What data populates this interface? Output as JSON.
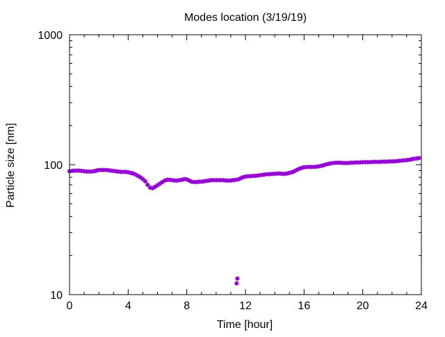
{
  "chart_data": {
    "type": "scatter",
    "title": "Modes location (3/19/19)",
    "xlabel": "Time [hour]",
    "ylabel": "Particle size [nm]",
    "xlim": [
      0,
      24
    ],
    "ylim": [
      10,
      1000
    ],
    "yscale": "log",
    "grid": false,
    "legend": "none",
    "marker_color": "#9400D3",
    "x_ticks": [
      0,
      4,
      8,
      12,
      16,
      20,
      24
    ],
    "x_tick_labels": [
      "0",
      "4",
      "8",
      "12",
      "16",
      "20",
      "24"
    ],
    "y_ticks": [
      10,
      100,
      1000
    ],
    "y_tick_labels": [
      "10",
      "100",
      "1000"
    ],
    "series": [
      {
        "points": [
          [
            0.0,
            89.0
          ],
          [
            0.17,
            89.5
          ],
          [
            0.33,
            90.0
          ],
          [
            0.5,
            90.0
          ],
          [
            0.67,
            90.0
          ],
          [
            0.83,
            89.5
          ],
          [
            1.0,
            89.0
          ],
          [
            1.17,
            88.5
          ],
          [
            1.33,
            88.5
          ],
          [
            1.5,
            88.5
          ],
          [
            1.67,
            89.0
          ],
          [
            1.83,
            90.0
          ],
          [
            2.0,
            91.0
          ],
          [
            2.17,
            91.0
          ],
          [
            2.33,
            91.0
          ],
          [
            2.5,
            91.0
          ],
          [
            2.67,
            90.5
          ],
          [
            2.83,
            90.0
          ],
          [
            3.0,
            89.5
          ],
          [
            3.17,
            89.0
          ],
          [
            3.33,
            88.5
          ],
          [
            3.5,
            88.0
          ],
          [
            3.67,
            88.0
          ],
          [
            3.83,
            88.0
          ],
          [
            4.0,
            87.5
          ],
          [
            4.17,
            86.5
          ],
          [
            4.33,
            85.5
          ],
          [
            4.5,
            84.0
          ],
          [
            4.67,
            82.0
          ],
          [
            4.83,
            80.0
          ],
          [
            5.0,
            77.5
          ],
          [
            5.17,
            74.5
          ],
          [
            5.33,
            70.0
          ],
          [
            5.5,
            66.5
          ],
          [
            5.67,
            66.0
          ],
          [
            5.83,
            67.5
          ],
          [
            6.0,
            69.5
          ],
          [
            6.17,
            71.5
          ],
          [
            6.33,
            73.5
          ],
          [
            6.5,
            75.5
          ],
          [
            6.67,
            76.5
          ],
          [
            6.83,
            76.5
          ],
          [
            7.0,
            76.0
          ],
          [
            7.17,
            75.5
          ],
          [
            7.33,
            75.5
          ],
          [
            7.5,
            76.0
          ],
          [
            7.67,
            76.5
          ],
          [
            7.83,
            77.5
          ],
          [
            8.0,
            77.0
          ],
          [
            8.17,
            75.5
          ],
          [
            8.33,
            74.0
          ],
          [
            8.5,
            73.5
          ],
          [
            8.67,
            73.5
          ],
          [
            8.83,
            74.0
          ],
          [
            9.0,
            74.0
          ],
          [
            9.17,
            74.5
          ],
          [
            9.33,
            75.0
          ],
          [
            9.5,
            75.5
          ],
          [
            9.67,
            76.0
          ],
          [
            9.83,
            76.0
          ],
          [
            10.0,
            76.0
          ],
          [
            10.17,
            76.0
          ],
          [
            10.33,
            76.0
          ],
          [
            10.5,
            76.0
          ],
          [
            10.67,
            75.5
          ],
          [
            10.83,
            75.5
          ],
          [
            11.0,
            75.5
          ],
          [
            11.17,
            76.0
          ],
          [
            11.33,
            76.5
          ],
          [
            11.5,
            77.0
          ],
          [
            11.67,
            78.5
          ],
          [
            11.83,
            80.0
          ],
          [
            12.0,
            81.0
          ],
          [
            12.17,
            81.5
          ],
          [
            12.33,
            81.5
          ],
          [
            12.5,
            82.0
          ],
          [
            12.67,
            82.0
          ],
          [
            12.83,
            82.5
          ],
          [
            13.0,
            83.0
          ],
          [
            13.17,
            83.5
          ],
          [
            13.33,
            84.0
          ],
          [
            13.5,
            84.5
          ],
          [
            13.67,
            84.5
          ],
          [
            13.83,
            85.0
          ],
          [
            14.0,
            85.0
          ],
          [
            14.17,
            85.5
          ],
          [
            14.33,
            85.5
          ],
          [
            14.5,
            85.0
          ],
          [
            14.67,
            85.0
          ],
          [
            14.83,
            85.5
          ],
          [
            15.0,
            86.5
          ],
          [
            15.17,
            87.5
          ],
          [
            15.33,
            89.0
          ],
          [
            15.5,
            91.0
          ],
          [
            15.67,
            93.0
          ],
          [
            15.83,
            94.5
          ],
          [
            16.0,
            95.5
          ],
          [
            16.17,
            96.0
          ],
          [
            16.33,
            96.0
          ],
          [
            16.5,
            96.0
          ],
          [
            16.67,
            96.0
          ],
          [
            16.83,
            96.5
          ],
          [
            17.0,
            97.0
          ],
          [
            17.17,
            98.0
          ],
          [
            17.33,
            99.0
          ],
          [
            17.5,
            100.5
          ],
          [
            17.67,
            101.5
          ],
          [
            17.83,
            102.5
          ],
          [
            18.0,
            103.0
          ],
          [
            18.17,
            103.5
          ],
          [
            18.33,
            103.5
          ],
          [
            18.5,
            103.5
          ],
          [
            18.67,
            103.0
          ],
          [
            18.83,
            103.0
          ],
          [
            19.0,
            103.0
          ],
          [
            19.17,
            103.5
          ],
          [
            19.33,
            103.5
          ],
          [
            19.5,
            104.0
          ],
          [
            19.67,
            104.0
          ],
          [
            19.83,
            104.0
          ],
          [
            20.0,
            104.5
          ],
          [
            20.17,
            104.5
          ],
          [
            20.33,
            104.5
          ],
          [
            20.5,
            104.5
          ],
          [
            20.67,
            105.0
          ],
          [
            20.83,
            105.0
          ],
          [
            21.0,
            105.0
          ],
          [
            21.17,
            105.0
          ],
          [
            21.33,
            105.5
          ],
          [
            21.5,
            105.5
          ],
          [
            21.67,
            105.5
          ],
          [
            21.83,
            106.0
          ],
          [
            22.0,
            106.0
          ],
          [
            22.17,
            106.0
          ],
          [
            22.33,
            106.5
          ],
          [
            22.5,
            107.0
          ],
          [
            22.67,
            107.5
          ],
          [
            22.83,
            108.0
          ],
          [
            23.0,
            108.5
          ],
          [
            23.17,
            109.0
          ],
          [
            23.33,
            110.0
          ],
          [
            23.5,
            111.0
          ],
          [
            23.67,
            111.5
          ],
          [
            23.83,
            112.5
          ],
          [
            11.4,
            12.2
          ],
          [
            11.45,
            13.3
          ]
        ]
      }
    ]
  }
}
